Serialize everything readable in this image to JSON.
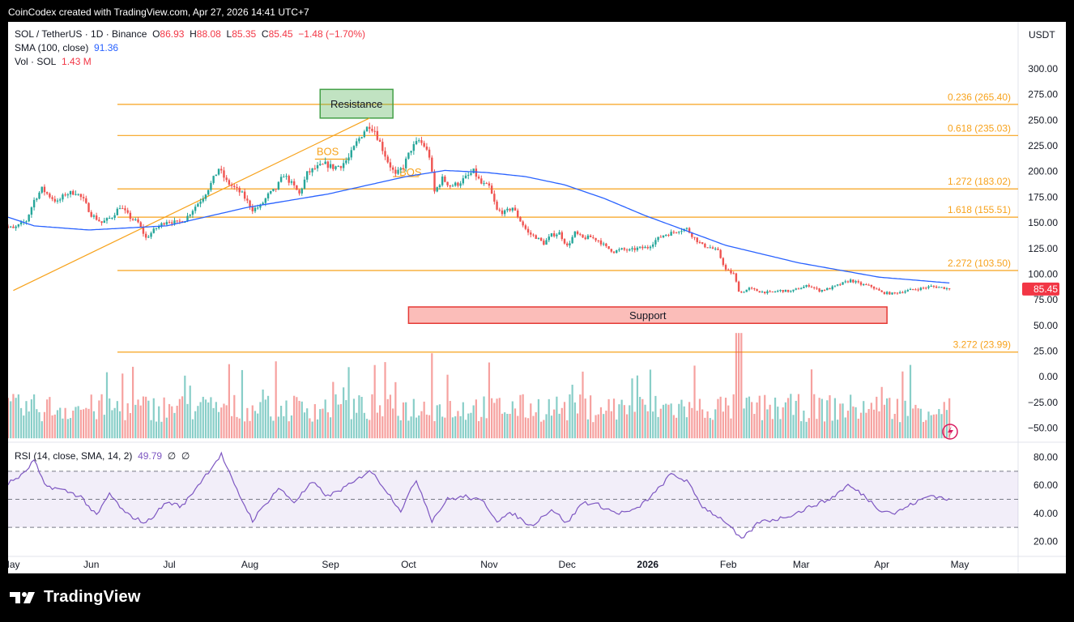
{
  "caption": "CoinCodex created with TradingView.com, Apr 27, 2026 14:41 UTC+7",
  "legend": {
    "symbol": "SOL / TetherUS · 1D · Binance",
    "o_label": "O",
    "o_value": "86.93",
    "h_label": "H",
    "h_value": "88.08",
    "l_label": "L",
    "l_value": "85.35",
    "c_label": "C",
    "c_value": "85.45",
    "change": "−1.48 (−1.70%)",
    "sma_label": "SMA (100, close)",
    "sma_value": "91.36",
    "vol_label": "Vol · SOL",
    "vol_value": "1.43 M"
  },
  "currency": "USDT",
  "rsi_legend": {
    "label": "RSI (14, close, SMA, 14, 2)",
    "value": "49.79",
    "na1": "∅",
    "na2": "∅"
  },
  "brand": "TradingView",
  "colors": {
    "up": "#26a69a",
    "down": "#ef5350",
    "sma": "#2962ff",
    "fib": "#f7a21b",
    "rsi": "#7e57c2",
    "price_tag": "#f23645"
  },
  "chart_data": {
    "type": "candlestick",
    "price_axis": {
      "ticks": [
        300,
        275,
        250,
        225,
        200,
        175,
        150,
        125,
        100,
        75,
        50,
        25,
        0,
        -25,
        -50
      ],
      "range": [
        -60,
        320
      ]
    },
    "rsi_axis": {
      "ticks": [
        80,
        60,
        40,
        20
      ],
      "bands": [
        70,
        50,
        30
      ],
      "range": [
        15,
        85
      ]
    },
    "x_axis": {
      "labels": [
        "May",
        "Jun",
        "Jul",
        "Aug",
        "Sep",
        "Oct",
        "Nov",
        "Dec",
        "2026",
        "Feb",
        "Mar",
        "Apr",
        "May"
      ],
      "bold": "2026"
    },
    "last_price": "85.45",
    "fib_levels": [
      {
        "label": "0.236 (265.40)",
        "value": 265.4
      },
      {
        "label": "0.618 (235.03)",
        "value": 235.03
      },
      {
        "label": "1.272 (183.02)",
        "value": 183.02
      },
      {
        "label": "1.618 (155.51)",
        "value": 155.51
      },
      {
        "label": "2.272 (103.50)",
        "value": 103.5
      },
      {
        "label": "3.272 (23.99)",
        "value": 23.99
      }
    ],
    "annotations": {
      "resistance": {
        "label": "Resistance",
        "top": 280,
        "bottom": 252,
        "from": "Aug 28",
        "to": "Sep 25"
      },
      "support": {
        "label": "Support",
        "top": 68,
        "bottom": 52,
        "from": "Oct 1",
        "to": "Apr 3"
      },
      "bos": [
        "BOS",
        "BOS"
      ],
      "trendline": [
        {
          "x": "Sep 16",
          "y": 252
        },
        {
          "x": "May 2",
          "y": 84
        }
      ]
    },
    "price_anchors": [
      [
        "2025-04-27",
        152
      ],
      [
        "2025-04-29",
        147
      ],
      [
        "2025-05-02",
        144
      ],
      [
        "2025-05-07",
        152
      ],
      [
        "2025-05-10",
        172
      ],
      [
        "2025-05-13",
        183
      ],
      [
        "2025-05-16",
        176
      ],
      [
        "2025-05-19",
        170
      ],
      [
        "2025-05-22",
        178
      ],
      [
        "2025-05-26",
        180
      ],
      [
        "2025-05-29",
        172
      ],
      [
        "2025-06-01",
        158
      ],
      [
        "2025-06-05",
        150
      ],
      [
        "2025-06-09",
        156
      ],
      [
        "2025-06-12",
        166
      ],
      [
        "2025-06-16",
        155
      ],
      [
        "2025-06-19",
        150
      ],
      [
        "2025-06-22",
        135
      ],
      [
        "2025-06-26",
        145
      ],
      [
        "2025-06-30",
        152
      ],
      [
        "2025-07-04",
        150
      ],
      [
        "2025-07-07",
        153
      ],
      [
        "2025-07-11",
        166
      ],
      [
        "2025-07-14",
        175
      ],
      [
        "2025-07-17",
        188
      ],
      [
        "2025-07-20",
        203
      ],
      [
        "2025-07-23",
        190
      ],
      [
        "2025-07-26",
        184
      ],
      [
        "2025-07-29",
        178
      ],
      [
        "2025-08-02",
        163
      ],
      [
        "2025-08-05",
        166
      ],
      [
        "2025-08-08",
        177
      ],
      [
        "2025-08-11",
        183
      ],
      [
        "2025-08-14",
        197
      ],
      [
        "2025-08-18",
        185
      ],
      [
        "2025-08-20",
        178
      ],
      [
        "2025-08-23",
        198
      ],
      [
        "2025-08-26",
        203
      ],
      [
        "2025-08-30",
        207
      ],
      [
        "2025-09-02",
        204
      ],
      [
        "2025-09-05",
        206
      ],
      [
        "2025-09-08",
        213
      ],
      [
        "2025-09-11",
        228
      ],
      [
        "2025-09-14",
        240
      ],
      [
        "2025-09-16",
        245
      ],
      [
        "2025-09-18",
        240
      ],
      [
        "2025-09-20",
        228
      ],
      [
        "2025-09-23",
        210
      ],
      [
        "2025-09-26",
        196
      ],
      [
        "2025-09-29",
        205
      ],
      [
        "2025-10-02",
        222
      ],
      [
        "2025-10-05",
        230
      ],
      [
        "2025-10-07",
        225
      ],
      [
        "2025-10-09",
        215
      ],
      [
        "2025-10-11",
        180
      ],
      [
        "2025-10-14",
        193
      ],
      [
        "2025-10-17",
        186
      ],
      [
        "2025-10-20",
        188
      ],
      [
        "2025-10-23",
        194
      ],
      [
        "2025-10-26",
        200
      ],
      [
        "2025-10-29",
        188
      ],
      [
        "2025-11-01",
        185
      ],
      [
        "2025-11-04",
        162
      ],
      [
        "2025-11-07",
        160
      ],
      [
        "2025-11-10",
        165
      ],
      [
        "2025-11-13",
        152
      ],
      [
        "2025-11-16",
        140
      ],
      [
        "2025-11-19",
        136
      ],
      [
        "2025-11-22",
        130
      ],
      [
        "2025-11-25",
        138
      ],
      [
        "2025-11-28",
        140
      ],
      [
        "2025-12-01",
        127
      ],
      [
        "2025-12-04",
        140
      ],
      [
        "2025-12-07",
        135
      ],
      [
        "2025-12-10",
        136
      ],
      [
        "2025-12-13",
        133
      ],
      [
        "2025-12-16",
        126
      ],
      [
        "2025-12-19",
        122
      ],
      [
        "2025-12-22",
        124
      ],
      [
        "2025-12-25",
        123
      ],
      [
        "2025-12-28",
        125
      ],
      [
        "2026-01-01",
        126
      ],
      [
        "2026-01-04",
        133
      ],
      [
        "2026-01-07",
        138
      ],
      [
        "2026-01-10",
        140
      ],
      [
        "2026-01-13",
        143
      ],
      [
        "2026-01-16",
        144
      ],
      [
        "2026-01-19",
        135
      ],
      [
        "2026-01-22",
        128
      ],
      [
        "2026-01-25",
        126
      ],
      [
        "2026-01-28",
        122
      ],
      [
        "2026-01-31",
        104
      ],
      [
        "2026-02-03",
        100
      ],
      [
        "2026-02-05",
        84
      ],
      [
        "2026-02-06",
        82
      ],
      [
        "2026-02-09",
        86
      ],
      [
        "2026-02-13",
        83
      ],
      [
        "2026-02-17",
        82
      ],
      [
        "2026-02-21",
        84
      ],
      [
        "2026-02-25",
        83
      ],
      [
        "2026-02-28",
        86
      ],
      [
        "2026-03-04",
        89
      ],
      [
        "2026-03-08",
        84
      ],
      [
        "2026-03-12",
        86
      ],
      [
        "2026-03-16",
        90
      ],
      [
        "2026-03-20",
        94
      ],
      [
        "2026-03-24",
        90
      ],
      [
        "2026-03-28",
        88
      ],
      [
        "2026-04-01",
        82
      ],
      [
        "2026-04-05",
        81
      ],
      [
        "2026-04-09",
        83
      ],
      [
        "2026-04-13",
        85
      ],
      [
        "2026-04-16",
        86
      ],
      [
        "2026-04-20",
        88
      ],
      [
        "2026-04-24",
        87
      ],
      [
        "2026-04-27",
        85.45
      ]
    ],
    "sma_anchors": [
      [
        "2025-04-27",
        158
      ],
      [
        "2025-05-10",
        147
      ],
      [
        "2025-05-31",
        143
      ],
      [
        "2025-06-30",
        147
      ],
      [
        "2025-07-31",
        165
      ],
      [
        "2025-08-31",
        178
      ],
      [
        "2025-09-30",
        195
      ],
      [
        "2025-10-15",
        201
      ],
      [
        "2025-10-31",
        199
      ],
      [
        "2025-11-15",
        195
      ],
      [
        "2025-11-30",
        187
      ],
      [
        "2025-12-15",
        174
      ],
      [
        "2025-12-31",
        157
      ],
      [
        "2026-01-15",
        143
      ],
      [
        "2026-01-31",
        128
      ],
      [
        "2026-02-28",
        111
      ],
      [
        "2026-03-31",
        97
      ],
      [
        "2026-04-27",
        91.36
      ]
    ],
    "rsi_anchors": [
      [
        "2025-04-27",
        58
      ],
      [
        "2025-05-06",
        68
      ],
      [
        "2025-05-10",
        78
      ],
      [
        "2025-05-14",
        60
      ],
      [
        "2025-05-22",
        56
      ],
      [
        "2025-05-28",
        52
      ],
      [
        "2025-06-03",
        38
      ],
      [
        "2025-06-08",
        54
      ],
      [
        "2025-06-14",
        40
      ],
      [
        "2025-06-22",
        33
      ],
      [
        "2025-06-30",
        48
      ],
      [
        "2025-07-06",
        45
      ],
      [
        "2025-07-12",
        60
      ],
      [
        "2025-07-21",
        82
      ],
      [
        "2025-07-26",
        60
      ],
      [
        "2025-08-02",
        35
      ],
      [
        "2025-08-12",
        58
      ],
      [
        "2025-08-18",
        48
      ],
      [
        "2025-08-25",
        62
      ],
      [
        "2025-08-31",
        52
      ],
      [
        "2025-09-10",
        62
      ],
      [
        "2025-09-16",
        71
      ],
      [
        "2025-09-21",
        60
      ],
      [
        "2025-09-28",
        42
      ],
      [
        "2025-10-04",
        64
      ],
      [
        "2025-10-10",
        35
      ],
      [
        "2025-10-16",
        50
      ],
      [
        "2025-10-23",
        52
      ],
      [
        "2025-10-30",
        48
      ],
      [
        "2025-11-04",
        35
      ],
      [
        "2025-11-10",
        40
      ],
      [
        "2025-11-17",
        31
      ],
      [
        "2025-11-25",
        43
      ],
      [
        "2025-12-01",
        33
      ],
      [
        "2025-12-07",
        48
      ],
      [
        "2025-12-13",
        46
      ],
      [
        "2025-12-20",
        40
      ],
      [
        "2025-12-27",
        42
      ],
      [
        "2026-01-04",
        55
      ],
      [
        "2026-01-10",
        68
      ],
      [
        "2026-01-16",
        63
      ],
      [
        "2026-01-22",
        45
      ],
      [
        "2026-01-31",
        34
      ],
      [
        "2026-02-06",
        21
      ],
      [
        "2026-02-13",
        34
      ],
      [
        "2026-02-20",
        36
      ],
      [
        "2026-02-27",
        40
      ],
      [
        "2026-03-06",
        46
      ],
      [
        "2026-03-12",
        50
      ],
      [
        "2026-03-19",
        60
      ],
      [
        "2026-03-25",
        53
      ],
      [
        "2026-03-31",
        43
      ],
      [
        "2026-04-06",
        40
      ],
      [
        "2026-04-13",
        47
      ],
      [
        "2026-04-20",
        53
      ],
      [
        "2026-04-27",
        49.79
      ]
    ],
    "volume_note": "Volume bars plotted in lower price pane; spike Feb 5, 2026"
  }
}
